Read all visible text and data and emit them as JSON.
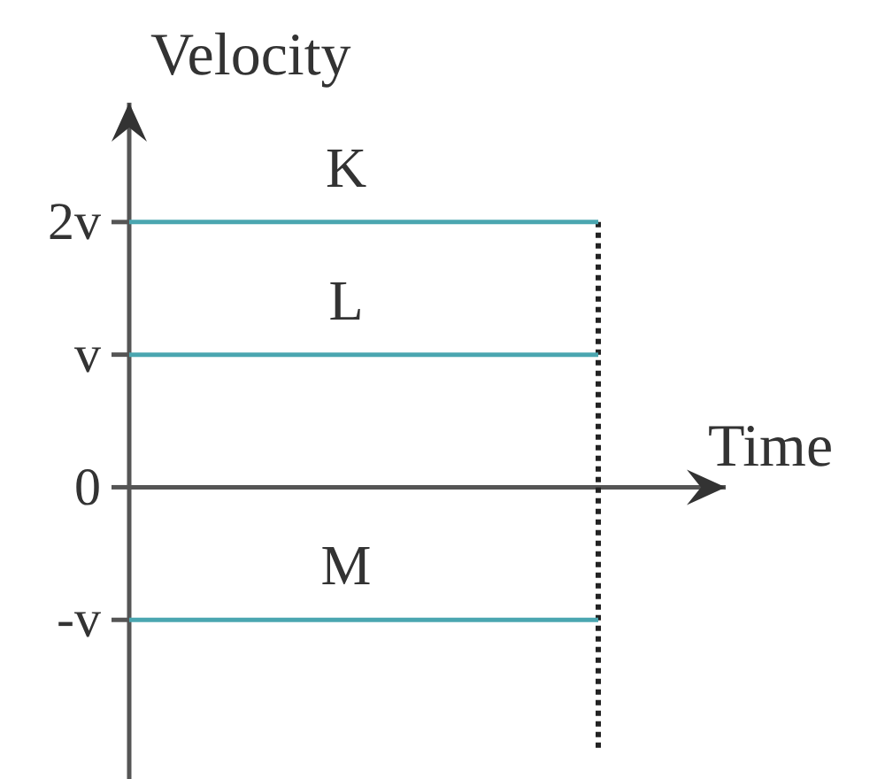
{
  "chart_data": {
    "type": "line",
    "xlabel": "Time",
    "ylabel": "Velocity",
    "categories": [
      null,
      null
    ],
    "ylim": [
      -2.2,
      2.9
    ],
    "yticks": [
      {
        "value": 2,
        "label": "2v"
      },
      {
        "value": 1,
        "label": "v"
      },
      0,
      {
        "value": -1,
        "label": "-v"
      }
    ],
    "tick_labels": "y",
    "series": [
      {
        "name": "K",
        "color": "#4aa6b0",
        "values": [
          2,
          2
        ]
      },
      {
        "name": "L",
        "color": "#4aa6b0",
        "values": [
          1,
          1
        ]
      },
      {
        "name": "M",
        "color": "#4aa6b0",
        "values": [
          -1,
          -1
        ]
      }
    ]
  }
}
